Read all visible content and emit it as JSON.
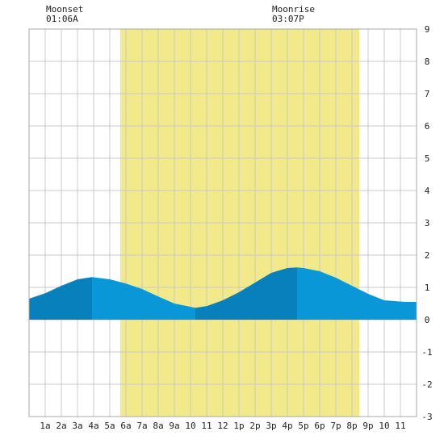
{
  "chart_data": {
    "type": "area",
    "moon_events": [
      {
        "name": "Moonset",
        "time": "01:06A",
        "hour": 1.1
      },
      {
        "name": "Moonrise",
        "time": "03:07P",
        "hour": 15.12
      }
    ],
    "daylight": {
      "start_hour": 5.65,
      "end_hour": 20.45
    },
    "x_tick_labels": [
      "1a",
      "2a",
      "3a",
      "4a",
      "5a",
      "6a",
      "7a",
      "8a",
      "9a",
      "10",
      "11",
      "12",
      "1p",
      "2p",
      "3p",
      "4p",
      "5p",
      "6p",
      "7p",
      "8p",
      "9p",
      "10",
      "11"
    ],
    "xlim": [
      0,
      24
    ],
    "ylim": [
      -3,
      9
    ],
    "y_ticks": [
      9,
      8,
      7,
      6,
      5,
      4,
      3,
      2,
      1,
      0,
      -1,
      -2,
      -3
    ],
    "grid": true,
    "series": [
      {
        "x": [
          0,
          1,
          2,
          3,
          3.9,
          5,
          6,
          7,
          8,
          9,
          10.3,
          11,
          12,
          13,
          14,
          15,
          16,
          16.6,
          17,
          18,
          19,
          20,
          21,
          22,
          23.3,
          24
        ],
        "values": [
          0.65,
          0.82,
          1.05,
          1.25,
          1.32,
          1.25,
          1.12,
          0.95,
          0.72,
          0.5,
          0.37,
          0.42,
          0.6,
          0.85,
          1.15,
          1.45,
          1.6,
          1.62,
          1.6,
          1.5,
          1.3,
          1.05,
          0.8,
          0.6,
          0.55,
          0.55
        ]
      }
    ],
    "tide_extremes": [
      {
        "type": "high",
        "hour": 3.9,
        "value": 1.32
      },
      {
        "type": "low",
        "hour": 10.3,
        "value": 0.37
      },
      {
        "type": "high",
        "hour": 16.6,
        "value": 1.62
      },
      {
        "type": "low",
        "hour": 23.3,
        "value": 0.55
      }
    ],
    "colors": {
      "daylight": "#f2ea8a",
      "tide_light": "#0a97d7",
      "tide_dark": "#0780bb",
      "grid": "#c8c8c8",
      "border": "#a8a8a8"
    }
  }
}
